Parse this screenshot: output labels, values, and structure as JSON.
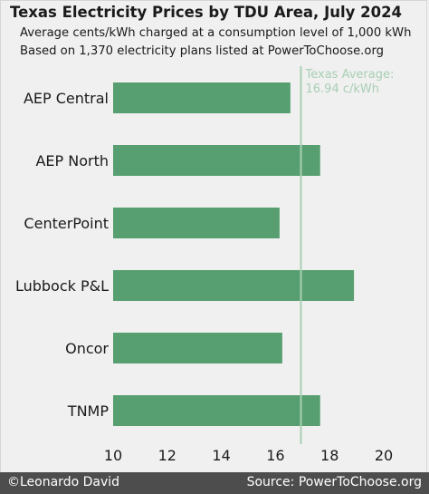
{
  "chart_data": {
    "type": "bar",
    "orientation": "horizontal",
    "title": "Texas Electricity Prices by TDU Area, July 2024",
    "subtitle_lines": [
      "Average cents/kWh charged at a consumption level of 1,000 kWh",
      "Based on 1,370 electricity plans listed at PowerToChoose.org"
    ],
    "categories": [
      "AEP Central",
      "AEP North",
      "CenterPoint",
      "Lubbock P&L",
      "Oncor",
      "TNMP"
    ],
    "values": [
      16.55,
      17.65,
      16.15,
      18.9,
      16.25,
      17.65
    ],
    "xlim": [
      10,
      20
    ],
    "xticks": [
      "10",
      "12",
      "14",
      "16",
      "18",
      "20"
    ],
    "reference_line": {
      "value": 16.94,
      "label_lines": [
        "Texas Average:",
        "16.94 c/kWh"
      ]
    },
    "bar_color": "#579f70",
    "reference_color": "#a8cfb4",
    "grid": false
  },
  "footer": {
    "left": "©Leonardo David",
    "right": "Source: PowerToChoose.org"
  }
}
